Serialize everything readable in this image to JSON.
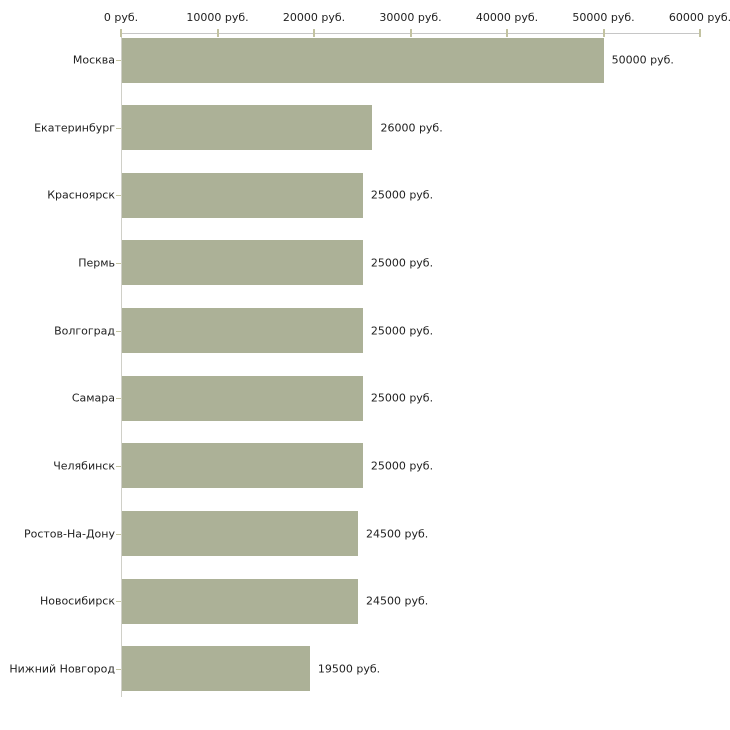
{
  "chart_data": {
    "type": "bar",
    "orientation": "horizontal",
    "title": "",
    "unit": "руб.",
    "categories": [
      "Москва",
      "Екатеринбург",
      "Красноярск",
      "Пермь",
      "Волгоград",
      "Самара",
      "Челябинск",
      "Ростов-На-Дону",
      "Новосибирск",
      "Нижний Новгород"
    ],
    "values": [
      50000,
      26000,
      25000,
      25000,
      25000,
      25000,
      25000,
      24500,
      24500,
      19500
    ],
    "value_labels": [
      "50000 руб.",
      "26000 руб.",
      "25000 руб.",
      "25000 руб.",
      "25000 руб.",
      "25000 руб.",
      "25000 руб.",
      "24500 руб.",
      "24500 руб.",
      "19500 руб."
    ],
    "x_axis": {
      "position": "top",
      "range": [
        0,
        60000
      ],
      "ticks": [
        0,
        10000,
        20000,
        30000,
        40000,
        50000,
        60000
      ],
      "tick_labels": [
        "0 руб.",
        "10000 руб.",
        "20000 руб.",
        "30000 руб.",
        "40000 руб.",
        "50000 руб.",
        "60000 руб."
      ]
    },
    "grid": false,
    "legend": false,
    "colors": {
      "bar": "#acb197",
      "axis_line": "#c6c6c6",
      "tick": "#c3c3a1",
      "vertical_axis_line": "#d0d0c8",
      "text": "#222222",
      "background": "#ffffff"
    }
  }
}
